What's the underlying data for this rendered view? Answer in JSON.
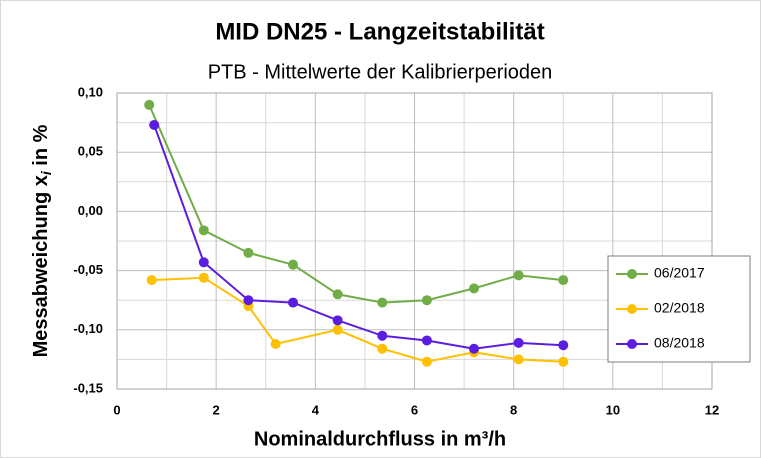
{
  "chart_data": {
    "type": "line",
    "title": "MID DN25 - Langzeitstabilität",
    "subtitle": "PTB - Mittelwerte der Kalibrierperioden",
    "xlabel": "Nominaldurchfluss in m³/h",
    "ylabel": [
      "Messabweichung x",
      "i",
      " in %"
    ],
    "xlim": [
      0,
      12
    ],
    "xticks": [
      0,
      2,
      4,
      6,
      8,
      10,
      12
    ],
    "xticks_minor": [
      1,
      3,
      5,
      7,
      9,
      11
    ],
    "ylim": [
      -0.15,
      0.1
    ],
    "yticks": [
      {
        "value": 0.1,
        "label": "0,10"
      },
      {
        "value": 0.05,
        "label": "0,05"
      },
      {
        "value": 0,
        "label": "0,00"
      },
      {
        "value": -0.05,
        "label": "-0,05"
      },
      {
        "value": -0.1,
        "label": "-0,10"
      },
      {
        "value": -0.15,
        "label": "-0,15"
      }
    ],
    "yticks_minor": [
      0.075,
      0.025,
      -0.025,
      -0.075,
      -0.125
    ],
    "grid": true,
    "legend": "right",
    "series": [
      {
        "name": "06/2017",
        "color": "#70ad47",
        "x": [
          0.65,
          1.75,
          2.65,
          3.55,
          4.45,
          5.35,
          6.25,
          7.2,
          8.1,
          9.0
        ],
        "values": [
          0.09,
          -0.016,
          -0.035,
          -0.045,
          -0.07,
          -0.077,
          -0.075,
          -0.065,
          -0.054,
          -0.058
        ]
      },
      {
        "name": "02/2018",
        "color": "#ffc000",
        "x": [
          0.7,
          1.75,
          2.65,
          3.2,
          4.45,
          5.35,
          6.25,
          7.2,
          8.1,
          9.0
        ],
        "values": [
          -0.058,
          -0.056,
          -0.08,
          -0.112,
          -0.1,
          -0.116,
          -0.127,
          -0.119,
          -0.125,
          -0.127
        ]
      },
      {
        "name": "08/2018",
        "color": "#5b1ee0",
        "x": [
          0.75,
          1.75,
          2.65,
          3.55,
          4.45,
          5.35,
          6.25,
          7.2,
          8.1,
          9.0
        ],
        "values": [
          0.073,
          -0.043,
          -0.075,
          -0.077,
          -0.092,
          -0.105,
          -0.109,
          -0.116,
          -0.111,
          -0.113
        ]
      }
    ]
  }
}
